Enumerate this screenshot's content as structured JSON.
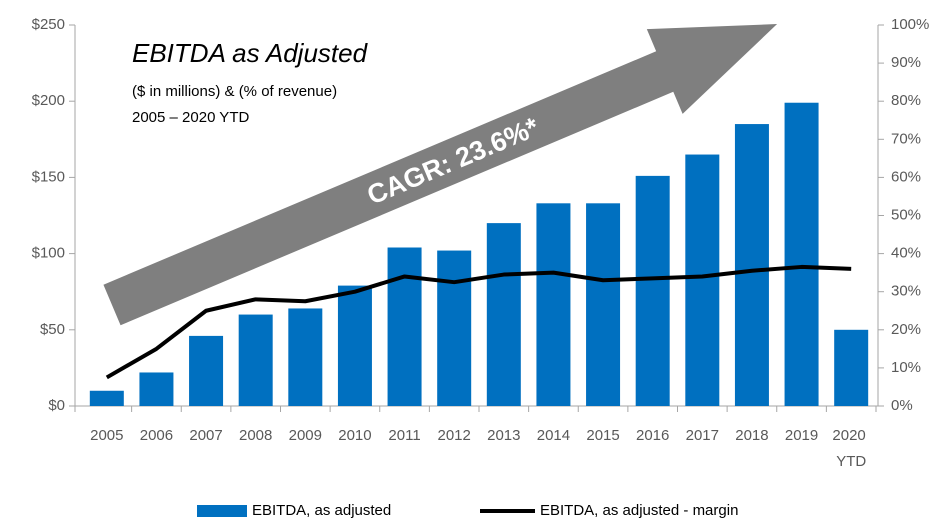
{
  "chart_data": {
    "type": "bar_line",
    "title": "EBITDA as Adjusted",
    "subtitle": [
      "($ in millions) & (% of revenue)",
      "2005 – 2020 YTD"
    ],
    "annotation": "CAGR: 23.6%*",
    "categories": [
      "2005",
      "2006",
      "2007",
      "2008",
      "2009",
      "2010",
      "2011",
      "2012",
      "2013",
      "2014",
      "2015",
      "2016",
      "2017",
      "2018",
      "2019",
      "2020 YTD"
    ],
    "series": [
      {
        "name": "EBITDA, as adjusted",
        "color": "#0070c0",
        "type": "bar",
        "values": [
          10,
          22,
          46,
          60,
          64,
          79,
          104,
          102,
          120,
          133,
          133,
          151,
          165,
          185,
          199,
          50
        ]
      },
      {
        "name": "EBITDA, as adjusted - margin",
        "color": "#000000",
        "type": "line",
        "axis": "y2",
        "values": [
          7.5,
          15,
          25,
          28,
          27.5,
          30,
          34,
          32.5,
          34.5,
          35,
          33,
          33.5,
          34,
          35.5,
          36.5,
          36
        ]
      }
    ],
    "ylim": [
      0,
      250
    ],
    "yticks": [
      {
        "value": 0,
        "label": "$0"
      },
      {
        "value": 50,
        "label": "$50"
      },
      {
        "value": 100,
        "label": "$100"
      },
      {
        "value": 150,
        "label": "$150"
      },
      {
        "value": 200,
        "label": "$200"
      },
      {
        "value": 250,
        "label": "$250"
      }
    ],
    "y2lim": [
      0,
      100
    ],
    "y2ticks": [
      {
        "value": 0,
        "label": "0%"
      },
      {
        "value": 10,
        "label": "10%"
      },
      {
        "value": 20,
        "label": "20%"
      },
      {
        "value": 30,
        "label": "30%"
      },
      {
        "value": 40,
        "label": "40%"
      },
      {
        "value": 50,
        "label": "50%"
      },
      {
        "value": 60,
        "label": "60%"
      },
      {
        "value": 70,
        "label": "70%"
      },
      {
        "value": 80,
        "label": "80%"
      },
      {
        "value": 90,
        "label": "90%"
      },
      {
        "value": 100,
        "label": "100%"
      }
    ],
    "legend": "bottom"
  }
}
